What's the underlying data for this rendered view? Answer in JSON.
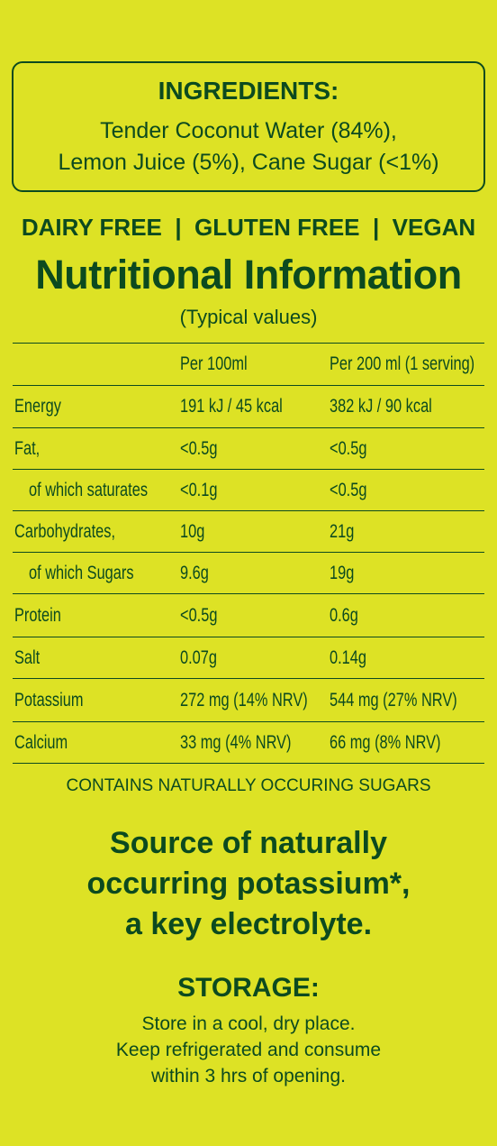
{
  "ingredients": {
    "title": "INGREDIENTS:",
    "lines": [
      "Tender Coconut Water (84%),",
      "Lemon Juice (5%), Cane Sugar (<1%)"
    ]
  },
  "claims": "DAIRY FREE  |  GLUTEN FREE  |  VEGAN",
  "nutrition": {
    "title": "Nutritional Information",
    "subtitle": "(Typical values)",
    "table": {
      "header": [
        "",
        "Per 100ml",
        "Per 200 ml (1 serving)"
      ],
      "rows": [
        [
          "Energy",
          "191 kJ / 45 kcal",
          "382 kJ / 90 kcal"
        ],
        [
          "Fat,",
          "<0.5g",
          "<0.5g"
        ],
        [
          "of which saturates",
          "<0.1g",
          "<0.5g"
        ],
        [
          "Carbohydrates,",
          "10g",
          "21g"
        ],
        [
          "of which Sugars",
          "9.6g",
          "19g"
        ],
        [
          "Protein",
          "<0.5g",
          "0.6g"
        ],
        [
          "Salt",
          "0.07g",
          "0.14g"
        ],
        [
          "Potassium",
          "272 mg (14% NRV)",
          "544 mg (27% NRV)"
        ],
        [
          "Calcium",
          "33 mg (4% NRV)",
          "66 mg (8% NRV)"
        ]
      ]
    }
  },
  "note": "CONTAINS NATURALLY OCCURING SUGARS",
  "highlight": [
    "Source of naturally",
    "occurring potassium*,",
    "a key electrolyte."
  ],
  "storage": {
    "title": "STORAGE:",
    "lines": [
      "Store in a cool, dry place.",
      "Keep refrigerated and consume",
      "within 3 hrs of opening."
    ]
  }
}
